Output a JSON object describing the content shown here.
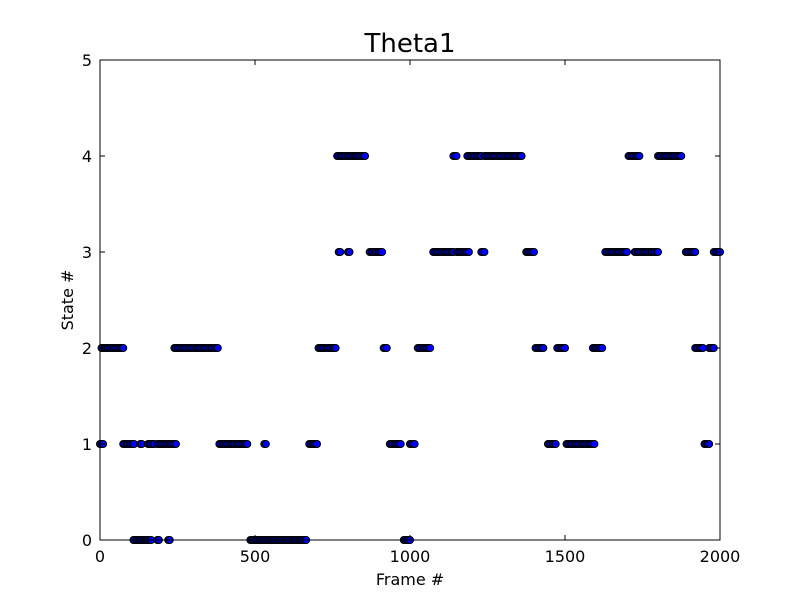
{
  "chart_data": {
    "type": "scatter",
    "title": "Theta1",
    "xlabel": "Frame #",
    "ylabel": "State #",
    "xlim": [
      0,
      2000
    ],
    "ylim": [
      0,
      5
    ],
    "xticks": [
      0,
      500,
      1000,
      1500,
      2000
    ],
    "yticks": [
      0,
      1,
      2,
      3,
      4,
      5
    ],
    "grid": false,
    "marker_color": "#0000ff",
    "marker_edge_color": "#000000",
    "segments": [
      {
        "state": 0,
        "ranges": [
          [
            108,
            155
          ],
          [
            160,
            165
          ],
          [
            185,
            190
          ],
          [
            220,
            225
          ],
          [
            485,
            665
          ],
          [
            980,
            1000
          ]
        ]
      },
      {
        "state": 1,
        "ranges": [
          [
            0,
            12
          ],
          [
            75,
            110
          ],
          [
            130,
            135
          ],
          [
            155,
            175
          ],
          [
            185,
            245
          ],
          [
            385,
            475
          ],
          [
            530,
            535
          ],
          [
            675,
            700
          ],
          [
            935,
            970
          ],
          [
            1000,
            1015
          ],
          [
            1445,
            1470
          ],
          [
            1505,
            1595
          ],
          [
            1950,
            1965
          ]
        ]
      },
      {
        "state": 2,
        "ranges": [
          [
            5,
            75
          ],
          [
            240,
            380
          ],
          [
            705,
            760
          ],
          [
            915,
            925
          ],
          [
            1025,
            1065
          ],
          [
            1405,
            1430
          ],
          [
            1475,
            1500
          ],
          [
            1590,
            1620
          ],
          [
            1920,
            1945
          ],
          [
            1965,
            1980
          ]
        ]
      },
      {
        "state": 3,
        "ranges": [
          [
            770,
            775
          ],
          [
            800,
            805
          ],
          [
            870,
            910
          ],
          [
            1075,
            1140
          ],
          [
            1150,
            1190
          ],
          [
            1230,
            1240
          ],
          [
            1375,
            1400
          ],
          [
            1630,
            1700
          ],
          [
            1725,
            1800
          ],
          [
            1890,
            1920
          ],
          [
            1980,
            2000
          ]
        ]
      },
      {
        "state": 4,
        "ranges": [
          [
            765,
            855
          ],
          [
            1140,
            1150
          ],
          [
            1185,
            1230
          ],
          [
            1240,
            1360
          ],
          [
            1705,
            1740
          ],
          [
            1800,
            1875
          ]
        ]
      }
    ]
  }
}
